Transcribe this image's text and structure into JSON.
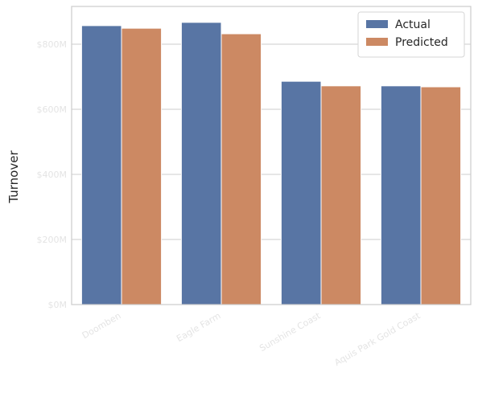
{
  "chart_data": {
    "type": "bar",
    "y_label": "Turnover",
    "categories": [
      "Doomben",
      "Eagle Farm",
      "Sunshine Coast",
      "Aquis Park Gold Coast"
    ],
    "series": [
      {
        "name": "Actual",
        "color": "#5875a4",
        "values": [
          857,
          867,
          686,
          672
        ]
      },
      {
        "name": "Predicted",
        "color": "#cc8963",
        "values": [
          849,
          832,
          672,
          669
        ]
      }
    ],
    "ylim": [
      0,
      916
    ],
    "yticks": [
      {
        "value": 0,
        "label": "$0M"
      },
      {
        "value": 200,
        "label": "$200M"
      },
      {
        "value": 400,
        "label": "$400M"
      },
      {
        "value": 600,
        "label": "$600M"
      },
      {
        "value": 800,
        "label": "$800M"
      }
    ],
    "grid": true,
    "legend": "upper-right"
  }
}
